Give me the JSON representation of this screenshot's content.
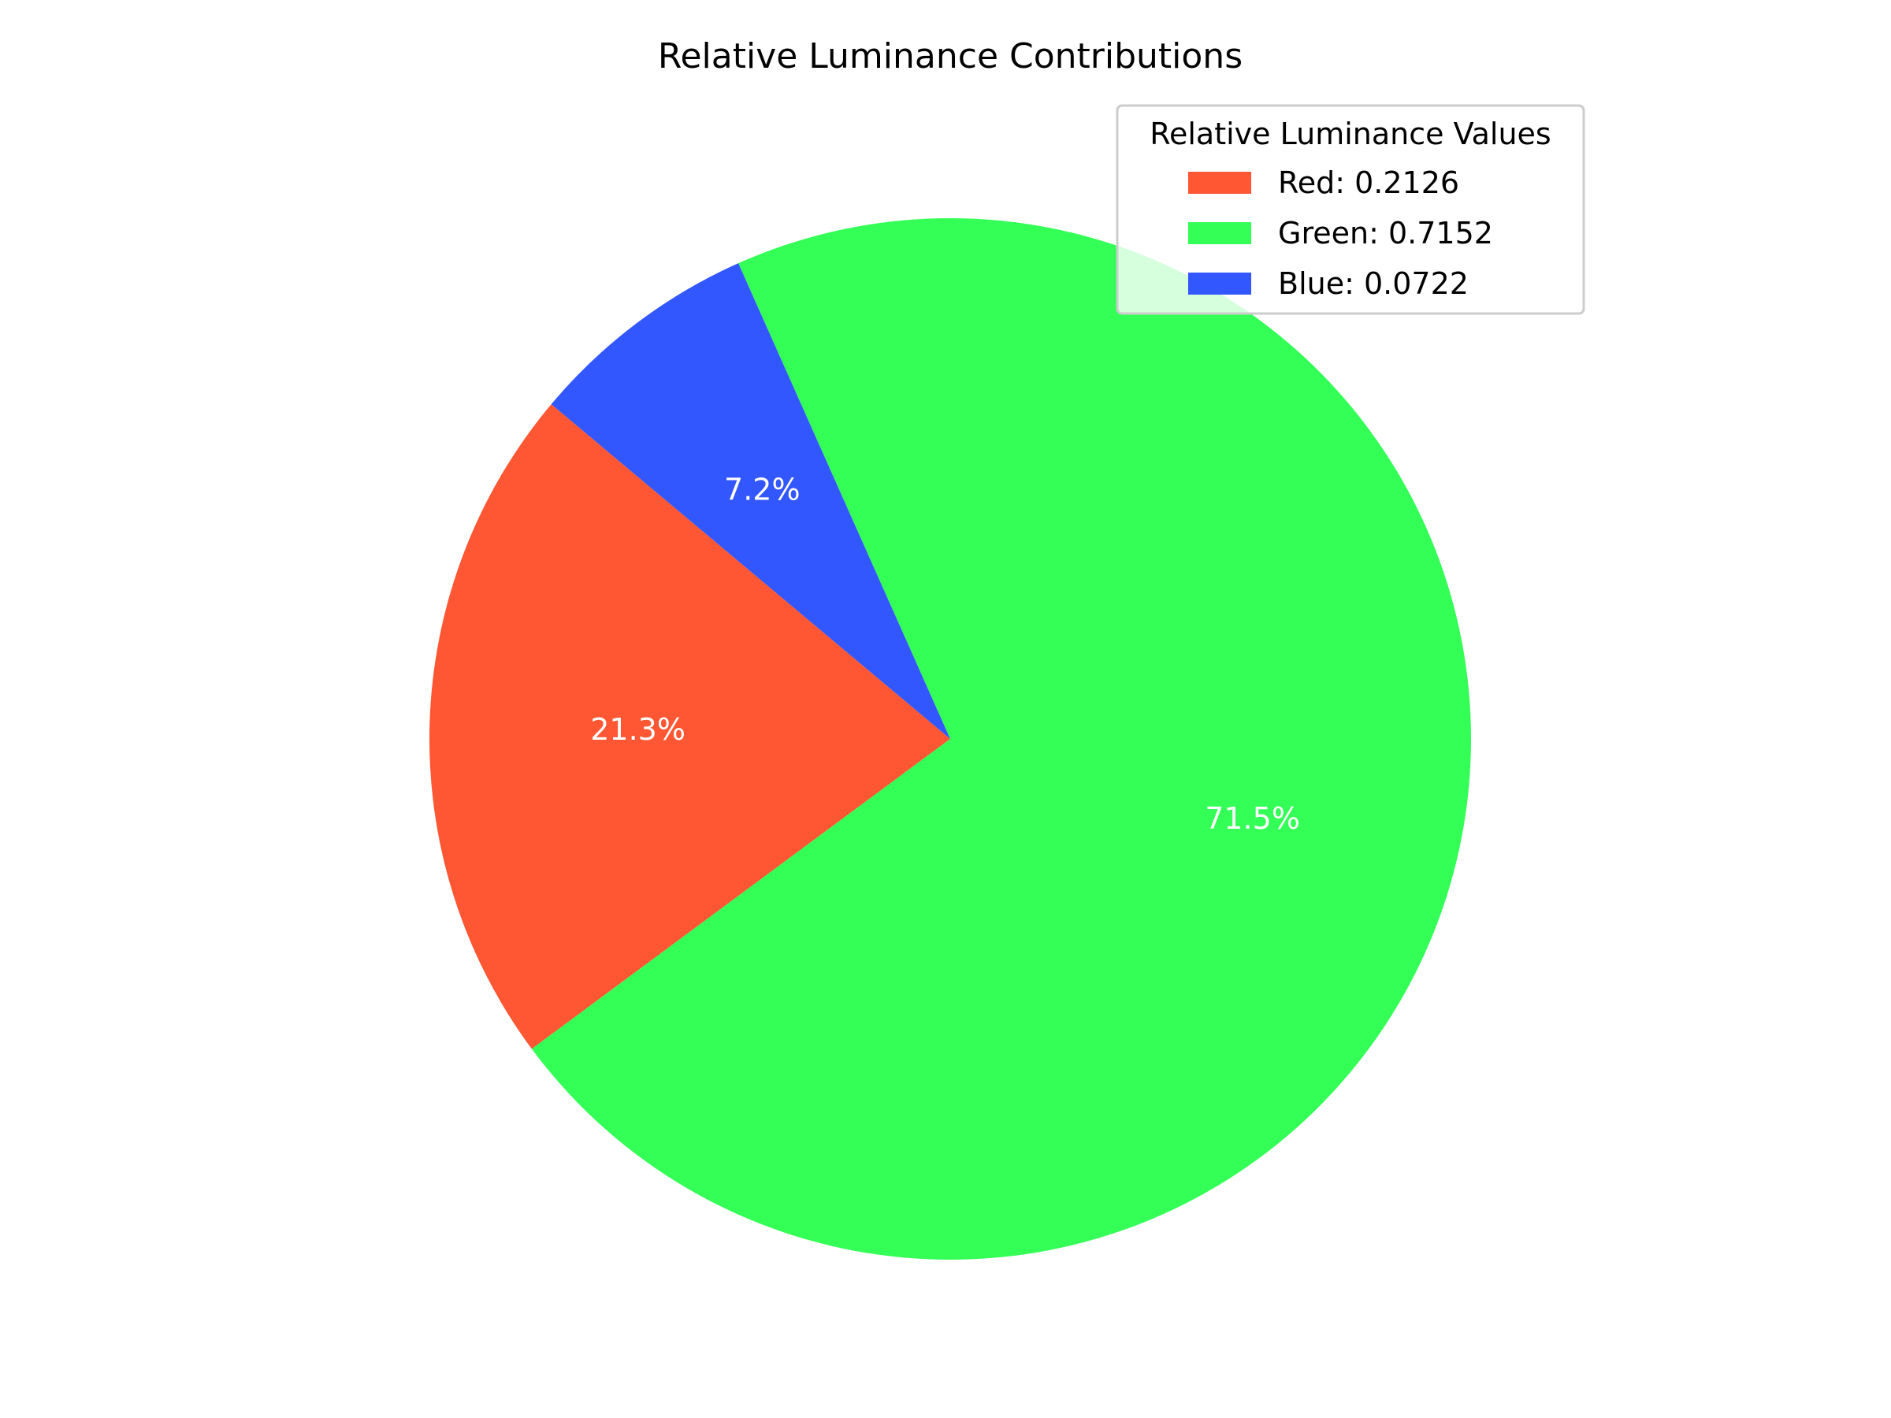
{
  "chart_data": {
    "type": "pie",
    "title": "Relative Luminance Contributions",
    "categories": [
      "Red",
      "Green",
      "Blue"
    ],
    "values": [
      0.2126,
      0.7152,
      0.0722
    ],
    "percent_labels": [
      "21.3%",
      "71.5%",
      "7.2%"
    ],
    "colors": [
      "#FF5733",
      "#33FF57",
      "#3357FF"
    ],
    "start_angle_deg": 140,
    "counterclockwise": true,
    "legend": {
      "title": "Relative Luminance Values",
      "placement": "upper-right",
      "entries": [
        "Red: 0.2126",
        "Green: 0.7152",
        "Blue: 0.0722"
      ]
    }
  }
}
